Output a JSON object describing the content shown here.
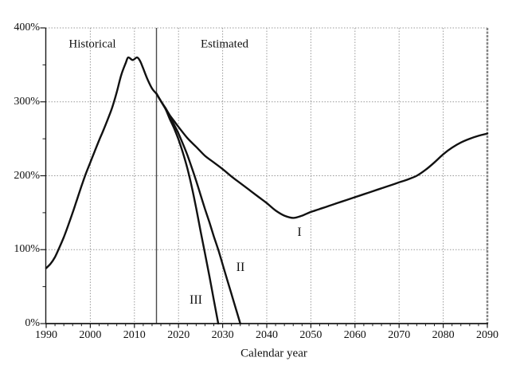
{
  "colors": {
    "background": "#ffffff",
    "line": "#111111",
    "grid": "#999999",
    "separator": "#4a4a4a",
    "right_border": "#848484",
    "axis": "#1a1a1a",
    "text": "#111111"
  },
  "chart_data": {
    "type": "line",
    "title": "",
    "xlabel": "Calendar year",
    "ylabel": "",
    "x_range": [
      1990,
      2090
    ],
    "y_range_percent": [
      0,
      400
    ],
    "grid": "dotted",
    "legend_position": "none",
    "historical_cutoff_year": 2015,
    "x_tick_labels": [
      "1990",
      "2000",
      "2010",
      "2020",
      "2030",
      "2040",
      "2050",
      "2060",
      "2070",
      "2080",
      "2090"
    ],
    "y_tick_labels": [
      "0%",
      "100%",
      "200%",
      "300%",
      "400%"
    ],
    "x_minor_tick_step_years": 2,
    "y_minor_tick_step_percent": 50,
    "annotations": [
      {
        "text": "Historical"
      },
      {
        "text": "Estimated"
      },
      {
        "text": "I"
      },
      {
        "text": "II"
      },
      {
        "text": "III"
      }
    ],
    "series": [
      {
        "name": "Historical",
        "points": [
          [
            1990,
            75
          ],
          [
            1991,
            81
          ],
          [
            1992,
            90
          ],
          [
            1993,
            103
          ],
          [
            1994,
            117
          ],
          [
            1995,
            133
          ],
          [
            1996,
            150
          ],
          [
            1997,
            168
          ],
          [
            1998,
            186
          ],
          [
            1999,
            203
          ],
          [
            2000,
            218
          ],
          [
            2001,
            233
          ],
          [
            2002,
            248
          ],
          [
            2003,
            262
          ],
          [
            2004,
            277
          ],
          [
            2005,
            293
          ],
          [
            2006,
            313
          ],
          [
            2007,
            336
          ],
          [
            2008,
            352
          ],
          [
            2008.6,
            360
          ],
          [
            2009.6,
            356.5
          ],
          [
            2010.6,
            360
          ],
          [
            2011.3,
            355
          ],
          [
            2012,
            345
          ],
          [
            2013,
            330
          ],
          [
            2014,
            318
          ],
          [
            2015,
            311
          ]
        ]
      },
      {
        "name": "I",
        "points": [
          [
            2015,
            311
          ],
          [
            2016,
            301
          ],
          [
            2017,
            292
          ],
          [
            2018,
            282
          ],
          [
            2019,
            274
          ],
          [
            2020,
            266
          ],
          [
            2022,
            251
          ],
          [
            2024,
            239
          ],
          [
            2026,
            227
          ],
          [
            2028,
            218
          ],
          [
            2030,
            209
          ],
          [
            2032,
            199
          ],
          [
            2034,
            190
          ],
          [
            2036,
            181
          ],
          [
            2038,
            172
          ],
          [
            2040,
            163
          ],
          [
            2042,
            153
          ],
          [
            2044,
            146
          ],
          [
            2046,
            143
          ],
          [
            2048,
            146
          ],
          [
            2050,
            151
          ],
          [
            2052,
            155
          ],
          [
            2054,
            159
          ],
          [
            2056,
            163
          ],
          [
            2058,
            167
          ],
          [
            2060,
            171
          ],
          [
            2062,
            175
          ],
          [
            2064,
            179
          ],
          [
            2066,
            183
          ],
          [
            2068,
            187
          ],
          [
            2070,
            191
          ],
          [
            2072,
            195
          ],
          [
            2074,
            200
          ],
          [
            2076,
            208
          ],
          [
            2078,
            218
          ],
          [
            2080,
            229
          ],
          [
            2082,
            238
          ],
          [
            2084,
            245
          ],
          [
            2086,
            250
          ],
          [
            2088,
            254
          ],
          [
            2090,
            257
          ]
        ]
      },
      {
        "name": "II",
        "points": [
          [
            2015,
            311
          ],
          [
            2016,
            301
          ],
          [
            2017,
            291
          ],
          [
            2018,
            280
          ],
          [
            2019,
            269
          ],
          [
            2020,
            257
          ],
          [
            2021,
            243
          ],
          [
            2022,
            228
          ],
          [
            2023,
            211
          ],
          [
            2024,
            193
          ],
          [
            2025,
            174
          ],
          [
            2026,
            155
          ],
          [
            2027,
            137
          ],
          [
            2028,
            118
          ],
          [
            2029,
            100
          ],
          [
            2030,
            80
          ],
          [
            2031,
            60
          ],
          [
            2032,
            40
          ],
          [
            2033,
            20
          ],
          [
            2034,
            0
          ]
        ]
      },
      {
        "name": "III",
        "points": [
          [
            2015,
            311
          ],
          [
            2016,
            301
          ],
          [
            2017,
            291
          ],
          [
            2018,
            277
          ],
          [
            2019,
            264
          ],
          [
            2020,
            249
          ],
          [
            2021,
            231
          ],
          [
            2022,
            210
          ],
          [
            2023,
            185
          ],
          [
            2024,
            156
          ],
          [
            2025,
            125
          ],
          [
            2026,
            95
          ],
          [
            2027,
            64
          ],
          [
            2028,
            32
          ],
          [
            2029,
            0
          ]
        ]
      }
    ]
  }
}
